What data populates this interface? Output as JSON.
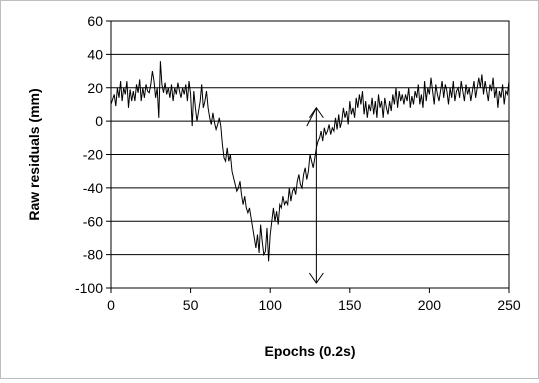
{
  "chart_data": {
    "type": "line",
    "title": "",
    "xlabel": "Epochs (0.2s)",
    "ylabel": "Raw residuals (mm)",
    "xlim": [
      0,
      250
    ],
    "ylim": [
      -100,
      60
    ],
    "x_ticks": [
      0,
      50,
      100,
      150,
      200,
      250
    ],
    "y_ticks": [
      60,
      40,
      20,
      0,
      -20,
      -40,
      -60,
      -80,
      -100
    ],
    "grid": "horizontal",
    "legend": "none",
    "colors": {
      "line": "#000000",
      "grid": "#000000",
      "background": "#ffffff"
    },
    "series": [
      {
        "points": [
          [
            0,
            10
          ],
          [
            2,
            16
          ],
          [
            3,
            9
          ],
          [
            4,
            20
          ],
          [
            5,
            14
          ],
          [
            6,
            24
          ],
          [
            7,
            12
          ],
          [
            8,
            20
          ],
          [
            9,
            16
          ],
          [
            10,
            24
          ],
          [
            11,
            8
          ],
          [
            12,
            19
          ],
          [
            13,
            12
          ],
          [
            14,
            18
          ],
          [
            15,
            12
          ],
          [
            16,
            22
          ],
          [
            17,
            17
          ],
          [
            18,
            25
          ],
          [
            19,
            12
          ],
          [
            20,
            20
          ],
          [
            21,
            14
          ],
          [
            22,
            22
          ],
          [
            23,
            18
          ],
          [
            24,
            17
          ],
          [
            25,
            22
          ],
          [
            26,
            30
          ],
          [
            27,
            24
          ],
          [
            28,
            14
          ],
          [
            29,
            20
          ],
          [
            30,
            2
          ],
          [
            31,
            36
          ],
          [
            32,
            22
          ],
          [
            33,
            17
          ],
          [
            34,
            23
          ],
          [
            35,
            16
          ],
          [
            36,
            20
          ],
          [
            37,
            14
          ],
          [
            38,
            22
          ],
          [
            39,
            12
          ],
          [
            40,
            20
          ],
          [
            41,
            16
          ],
          [
            42,
            23
          ],
          [
            43,
            18
          ],
          [
            44,
            14
          ],
          [
            45,
            20
          ],
          [
            46,
            16
          ],
          [
            47,
            22
          ],
          [
            48,
            12
          ],
          [
            49,
            24
          ],
          [
            50,
            16
          ],
          [
            51,
            -3
          ],
          [
            52,
            18
          ],
          [
            53,
            8
          ],
          [
            54,
            0
          ],
          [
            55,
            6
          ],
          [
            56,
            12
          ],
          [
            57,
            22
          ],
          [
            58,
            8
          ],
          [
            59,
            12
          ],
          [
            60,
            18
          ],
          [
            61,
            8
          ],
          [
            62,
            2
          ],
          [
            63,
            -2
          ],
          [
            64,
            5
          ],
          [
            65,
            -1
          ],
          [
            66,
            -5
          ],
          [
            67,
            -2
          ],
          [
            68,
            2
          ],
          [
            69,
            -3
          ],
          [
            70,
            -14
          ],
          [
            71,
            -22
          ],
          [
            72,
            -24
          ],
          [
            73,
            -16
          ],
          [
            74,
            -24
          ],
          [
            75,
            -20
          ],
          [
            76,
            -30
          ],
          [
            77,
            -34
          ],
          [
            78,
            -38
          ],
          [
            79,
            -42
          ],
          [
            80,
            -40
          ],
          [
            81,
            -36
          ],
          [
            82,
            -44
          ],
          [
            83,
            -50
          ],
          [
            84,
            -45
          ],
          [
            85,
            -52
          ],
          [
            86,
            -55
          ],
          [
            87,
            -52
          ],
          [
            88,
            -58
          ],
          [
            89,
            -64
          ],
          [
            90,
            -70
          ],
          [
            91,
            -76
          ],
          [
            92,
            -68
          ],
          [
            93,
            -79
          ],
          [
            94,
            -62
          ],
          [
            95,
            -72
          ],
          [
            96,
            -80
          ],
          [
            97,
            -78
          ],
          [
            98,
            -64
          ],
          [
            99,
            -84
          ],
          [
            100,
            -68
          ],
          [
            101,
            -60
          ],
          [
            102,
            -52
          ],
          [
            103,
            -60
          ],
          [
            104,
            -54
          ],
          [
            105,
            -62
          ],
          [
            106,
            -50
          ],
          [
            107,
            -52
          ],
          [
            108,
            -45
          ],
          [
            109,
            -50
          ],
          [
            110,
            -48
          ],
          [
            111,
            -50
          ],
          [
            112,
            -40
          ],
          [
            113,
            -48
          ],
          [
            114,
            -42
          ],
          [
            115,
            -40
          ],
          [
            116,
            -44
          ],
          [
            117,
            -36
          ],
          [
            118,
            -32
          ],
          [
            119,
            -38
          ],
          [
            120,
            -40
          ],
          [
            121,
            -32
          ],
          [
            122,
            -28
          ],
          [
            123,
            -35
          ],
          [
            124,
            -30
          ],
          [
            125,
            -20
          ],
          [
            126,
            -24
          ],
          [
            127,
            -28
          ],
          [
            128,
            -22
          ],
          [
            129,
            -16
          ],
          [
            130,
            -12
          ],
          [
            131,
            -10
          ],
          [
            132,
            -6
          ],
          [
            133,
            -12
          ],
          [
            134,
            -4
          ],
          [
            135,
            -8
          ],
          [
            136,
            -6
          ],
          [
            137,
            -2
          ],
          [
            138,
            -8
          ],
          [
            139,
            -4
          ],
          [
            140,
            -6
          ],
          [
            141,
            2
          ],
          [
            142,
            -5
          ],
          [
            143,
            4
          ],
          [
            144,
            -4
          ],
          [
            145,
            0
          ],
          [
            146,
            8
          ],
          [
            147,
            2
          ],
          [
            148,
            6
          ],
          [
            149,
            -2
          ],
          [
            150,
            12
          ],
          [
            151,
            4
          ],
          [
            152,
            8
          ],
          [
            153,
            2
          ],
          [
            154,
            14
          ],
          [
            155,
            8
          ],
          [
            156,
            16
          ],
          [
            157,
            10
          ],
          [
            158,
            18
          ],
          [
            159,
            4
          ],
          [
            160,
            12
          ],
          [
            161,
            2
          ],
          [
            162,
            10
          ],
          [
            163,
            6
          ],
          [
            164,
            14
          ],
          [
            165,
            4
          ],
          [
            166,
            12
          ],
          [
            167,
            2
          ],
          [
            168,
            16
          ],
          [
            169,
            8
          ],
          [
            170,
            12
          ],
          [
            171,
            2
          ],
          [
            172,
            14
          ],
          [
            173,
            8
          ],
          [
            174,
            4
          ],
          [
            175,
            12
          ],
          [
            176,
            6
          ],
          [
            177,
            16
          ],
          [
            178,
            10
          ],
          [
            179,
            20
          ],
          [
            180,
            8
          ],
          [
            181,
            18
          ],
          [
            182,
            12
          ],
          [
            183,
            16
          ],
          [
            184,
            10
          ],
          [
            185,
            16
          ],
          [
            186,
            12
          ],
          [
            187,
            20
          ],
          [
            188,
            8
          ],
          [
            189,
            15
          ],
          [
            190,
            10
          ],
          [
            191,
            18
          ],
          [
            192,
            14
          ],
          [
            193,
            22
          ],
          [
            194,
            10
          ],
          [
            195,
            16
          ],
          [
            196,
            8
          ],
          [
            197,
            24
          ],
          [
            198,
            12
          ],
          [
            199,
            20
          ],
          [
            200,
            16
          ],
          [
            201,
            26
          ],
          [
            202,
            18
          ],
          [
            203,
            10
          ],
          [
            204,
            22
          ],
          [
            205,
            16
          ],
          [
            206,
            12
          ],
          [
            207,
            18
          ],
          [
            208,
            24
          ],
          [
            209,
            14
          ],
          [
            210,
            22
          ],
          [
            211,
            18
          ],
          [
            212,
            10
          ],
          [
            213,
            20
          ],
          [
            214,
            14
          ],
          [
            215,
            24
          ],
          [
            216,
            12
          ],
          [
            217,
            18
          ],
          [
            218,
            20
          ],
          [
            219,
            14
          ],
          [
            220,
            24
          ],
          [
            221,
            18
          ],
          [
            222,
            12
          ],
          [
            223,
            22
          ],
          [
            224,
            16
          ],
          [
            225,
            20
          ],
          [
            226,
            12
          ],
          [
            227,
            18
          ],
          [
            228,
            24
          ],
          [
            229,
            14
          ],
          [
            230,
            20
          ],
          [
            231,
            26
          ],
          [
            232,
            20
          ],
          [
            233,
            28
          ],
          [
            234,
            16
          ],
          [
            235,
            24
          ],
          [
            236,
            18
          ],
          [
            237,
            12
          ],
          [
            238,
            22
          ],
          [
            239,
            18
          ],
          [
            240,
            26
          ],
          [
            241,
            14
          ],
          [
            242,
            20
          ],
          [
            243,
            8
          ],
          [
            244,
            18
          ],
          [
            245,
            14
          ],
          [
            246,
            22
          ],
          [
            247,
            10
          ],
          [
            248,
            18
          ],
          [
            249,
            16
          ],
          [
            250,
            24
          ]
        ]
      }
    ],
    "annotations": [
      {
        "kind": "arrow-line",
        "points": [
          [
            123,
            -3
          ],
          [
            129,
            8
          ]
        ]
      },
      {
        "kind": "double-arrow-vertical",
        "x": 129,
        "y_top": 8,
        "y_bottom": -97
      }
    ]
  }
}
